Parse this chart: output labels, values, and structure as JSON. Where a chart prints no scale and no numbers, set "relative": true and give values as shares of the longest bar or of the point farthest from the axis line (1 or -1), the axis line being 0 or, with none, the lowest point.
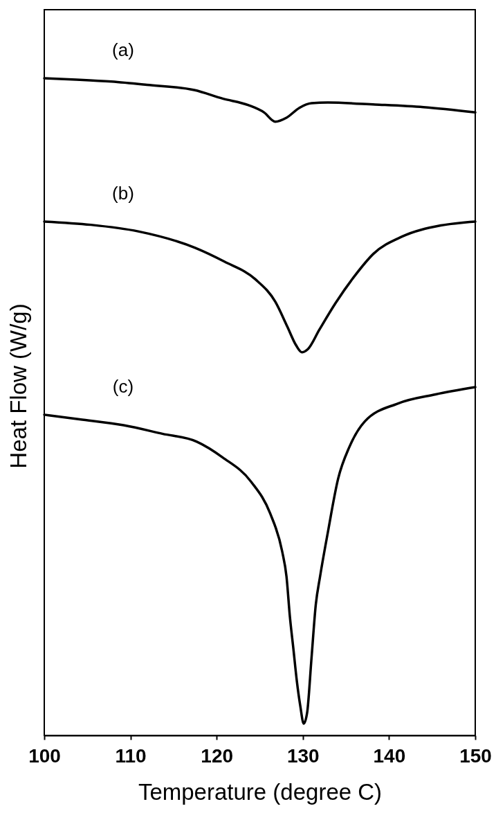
{
  "chart_data": {
    "type": "line",
    "relative": true,
    "xlabel": "Temperature (degree C)",
    "ylabel": "Heat Flow (W/g)",
    "xlim": [
      100,
      150
    ],
    "xticks": [
      100,
      110,
      120,
      130,
      140,
      150
    ],
    "line_style": "solid",
    "series": [
      {
        "name": "(a)",
        "color": "#000000",
        "x": [
          100,
          103.7,
          107.8,
          111.9,
          117.4,
          120.7,
          123.7,
          125.5,
          126.8,
          128.1,
          129.6,
          131.0,
          132.9,
          138.4,
          144.0,
          150
        ],
        "values": [
          1.0,
          0.998,
          0.995,
          0.99,
          0.982,
          0.969,
          0.959,
          0.948,
          0.934,
          0.94,
          0.955,
          0.962,
          0.963,
          0.96,
          0.956,
          0.948
        ]
      },
      {
        "name": "(b)",
        "color": "#000000",
        "x": [
          100,
          105.4,
          110.9,
          117.5,
          120.9,
          124.5,
          126.8,
          128.2,
          129.2,
          129.9,
          130.6,
          131.9,
          133.8,
          136.0,
          138.2,
          141.5,
          146.0,
          150
        ],
        "values": [
          0.782,
          0.777,
          0.767,
          0.742,
          0.721,
          0.694,
          0.66,
          0.622,
          0.594,
          0.583,
          0.588,
          0.617,
          0.658,
          0.699,
          0.733,
          0.759,
          0.776,
          0.782
        ]
      },
      {
        "name": "(c)",
        "color": "#000000",
        "x": [
          100,
          104.1,
          109.2,
          113.7,
          117.7,
          120.7,
          124.0,
          126.2,
          127.6,
          128.1,
          128.5,
          128.9,
          129.3,
          129.7,
          130.1,
          130.5,
          131.0,
          131.5,
          132.0,
          132.9,
          134.1,
          135.4,
          137.2,
          141.0,
          145.4,
          150
        ],
        "values": [
          0.488,
          0.481,
          0.472,
          0.459,
          0.447,
          0.423,
          0.386,
          0.338,
          0.28,
          0.242,
          0.18,
          0.132,
          0.083,
          0.045,
          0.018,
          0.035,
          0.117,
          0.199,
          0.242,
          0.309,
          0.391,
          0.439,
          0.478,
          0.505,
          0.519,
          0.53
        ]
      }
    ]
  }
}
